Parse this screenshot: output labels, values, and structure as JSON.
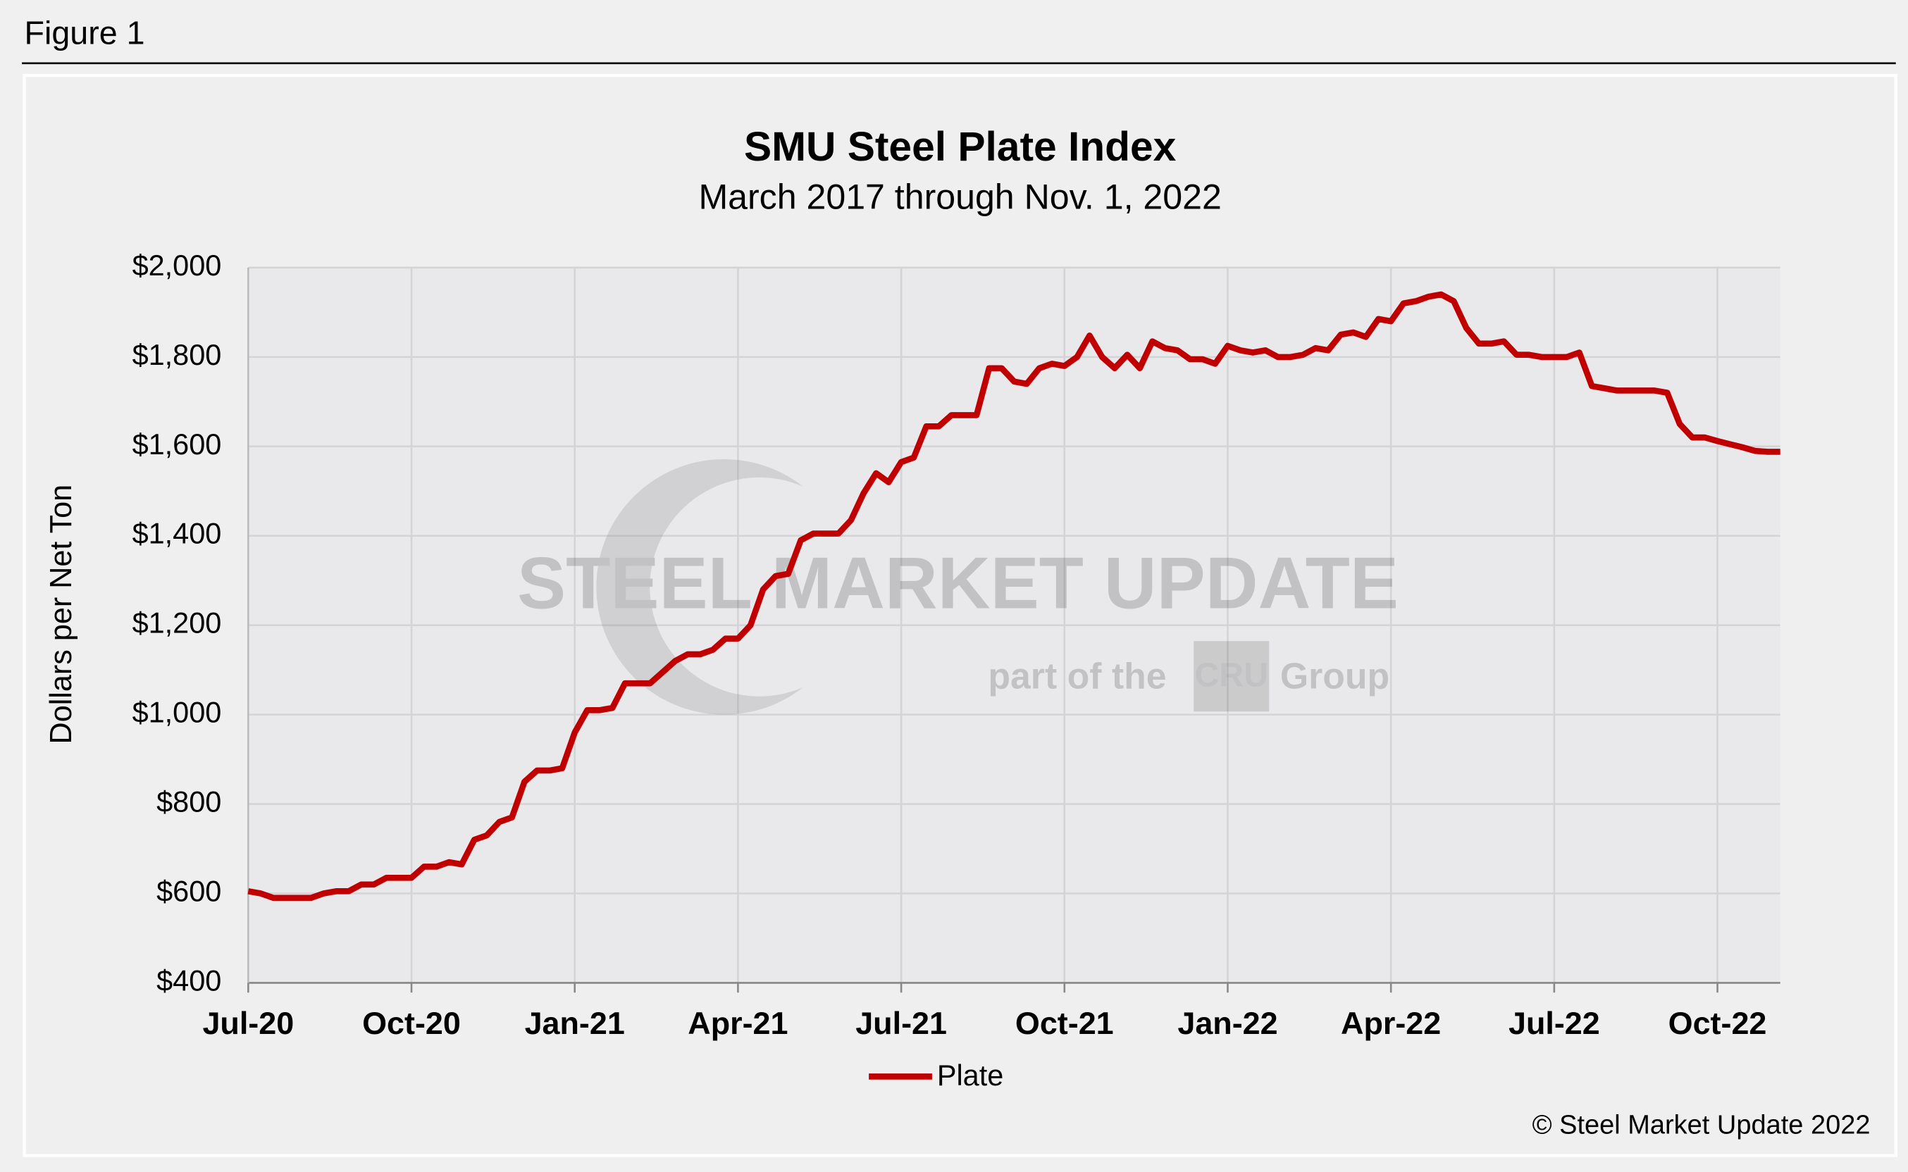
{
  "figure_label": "Figure 1",
  "copyright": "© Steel Market Update 2022",
  "watermark": {
    "brand": "STEEL MARKET UPDATE",
    "tagline_before": "part of the",
    "logo": "CRU",
    "tagline_after": "Group"
  },
  "chart_data": {
    "type": "line",
    "title": "SMU Steel Plate Index",
    "subtitle": "March 2017 through Nov. 1, 2022",
    "y_label": "Dollars per Net Ton",
    "categories": [
      "Jul-20",
      null,
      null,
      null,
      null,
      null,
      null,
      null,
      null,
      null,
      null,
      null,
      null,
      "Oct-20",
      null,
      null,
      null,
      null,
      null,
      null,
      null,
      null,
      null,
      null,
      null,
      null,
      "Jan-21",
      null,
      null,
      null,
      null,
      null,
      null,
      null,
      null,
      null,
      null,
      null,
      null,
      "Apr-21",
      null,
      null,
      null,
      null,
      null,
      null,
      null,
      null,
      null,
      null,
      null,
      null,
      "Jul-21",
      null,
      null,
      null,
      null,
      null,
      null,
      null,
      null,
      null,
      null,
      null,
      null,
      "Oct-21",
      null,
      null,
      null,
      null,
      null,
      null,
      null,
      null,
      null,
      null,
      null,
      null,
      "Jan-22",
      null,
      null,
      null,
      null,
      null,
      null,
      null,
      null,
      null,
      null,
      null,
      null,
      "Apr-22",
      null,
      null,
      null,
      null,
      null,
      null,
      null,
      null,
      null,
      null,
      null,
      null,
      "Jul-22",
      null,
      null,
      null,
      null,
      null,
      null,
      null,
      null,
      null,
      null,
      null,
      null,
      "Oct-22",
      null,
      null,
      null,
      null,
      null
    ],
    "series": [
      {
        "name": "Plate",
        "color": "#c00000",
        "values": [
          605,
          600,
          590,
          590,
          590,
          590,
          600,
          605,
          605,
          620,
          620,
          635,
          635,
          635,
          660,
          660,
          670,
          665,
          720,
          730,
          760,
          770,
          850,
          875,
          875,
          880,
          960,
          1010,
          1010,
          1015,
          1070,
          1070,
          1070,
          1095,
          1120,
          1135,
          1135,
          1145,
          1170,
          1170,
          1200,
          1280,
          1310,
          1315,
          1390,
          1405,
          1405,
          1405,
          1435,
          1495,
          1540,
          1520,
          1565,
          1575,
          1645,
          1645,
          1670,
          1670,
          1670,
          1775,
          1775,
          1745,
          1740,
          1775,
          1785,
          1780,
          1800,
          1848,
          1800,
          1775,
          1805,
          1775,
          1835,
          1820,
          1815,
          1795,
          1795,
          1785,
          1825,
          1815,
          1810,
          1815,
          1800,
          1800,
          1805,
          1820,
          1815,
          1850,
          1855,
          1845,
          1885,
          1880,
          1920,
          1925,
          1935,
          1940,
          1925,
          1865,
          1830,
          1830,
          1835,
          1805,
          1805,
          1800,
          1800,
          1800,
          1810,
          1735,
          1730,
          1725,
          1725,
          1725,
          1725,
          1720,
          1650,
          1620,
          1620,
          1612,
          1605,
          1598,
          1590,
          1588,
          1588
        ]
      }
    ],
    "ylim": [
      400,
      2000
    ],
    "yticks": [
      {
        "value": 400,
        "label": "$400"
      },
      {
        "value": 600,
        "label": "$600"
      },
      {
        "value": 800,
        "label": "$800"
      },
      {
        "value": 1000,
        "label": "$1,000"
      },
      {
        "value": 1200,
        "label": "$1,200"
      },
      {
        "value": 1400,
        "label": "$1,400"
      },
      {
        "value": 1600,
        "label": "$1,600"
      },
      {
        "value": 1800,
        "label": "$1,800"
      },
      {
        "value": 2000,
        "label": "$2,000"
      }
    ],
    "grid": true,
    "legend": "bottom"
  }
}
